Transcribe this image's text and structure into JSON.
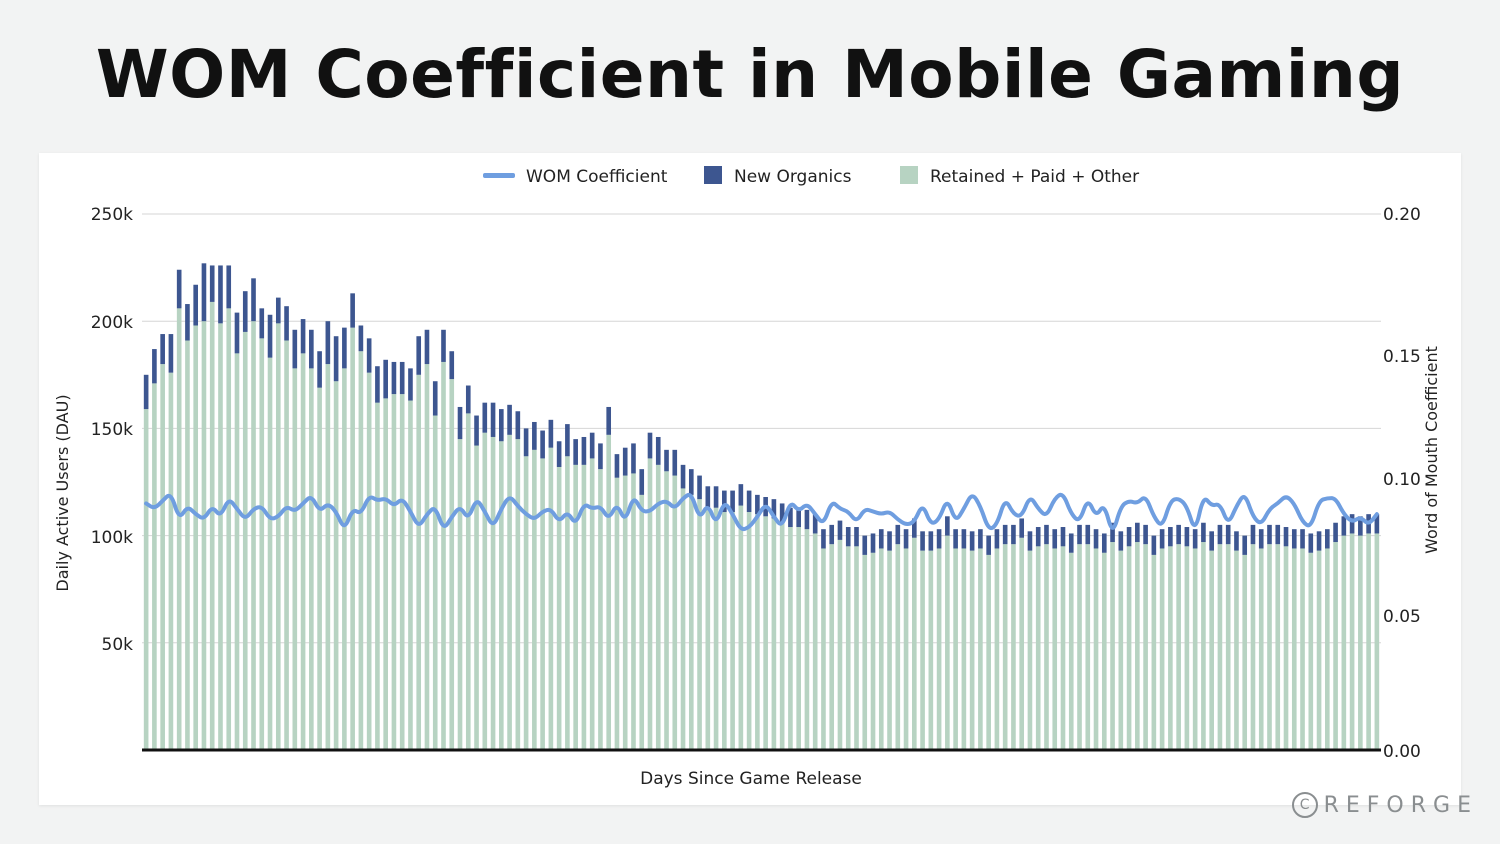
{
  "title": "WOM Coefficient in Mobile Gaming",
  "brand": {
    "mark": "C",
    "name": "REFORGE"
  },
  "colors": {
    "wom_line": "#6f9ee0",
    "new_organics": "#3d5690",
    "retained": "#b7d3c2",
    "grid": "#d6d6d6",
    "axis": "#111111"
  },
  "chart_data": {
    "type": "bar+line",
    "title": "WOM Coefficient in Mobile Gaming",
    "xlabel": "Days Since Game Release",
    "ylabel_left": "Daily Active Users (DAU)",
    "ylabel_right": "Word of Mouth Coefficient",
    "ylim_left": [
      0,
      250000
    ],
    "ylim_right": [
      0,
      0.2
    ],
    "yticks_left": [
      "50k",
      "100k",
      "150k",
      "200k",
      "250k"
    ],
    "yticks_right": [
      "0.00",
      "0.05",
      "0.10",
      "0.15",
      "0.20"
    ],
    "legend": [
      "WOM Coefficient",
      "New Organics",
      "Retained + Paid + Other"
    ],
    "days": 150,
    "series": [
      {
        "name": "Retained + Paid + Other",
        "type": "bar",
        "values": [
          159000,
          171000,
          180000,
          176000,
          206000,
          191000,
          198000,
          200000,
          209000,
          199000,
          206000,
          185000,
          195000,
          200000,
          192000,
          183000,
          199000,
          191000,
          178000,
          185000,
          178000,
          169000,
          180000,
          172000,
          178000,
          197000,
          186000,
          176000,
          162000,
          164000,
          166000,
          166000,
          163000,
          175000,
          180000,
          156000,
          181000,
          173000,
          145000,
          157000,
          142000,
          148000,
          146000,
          144000,
          147000,
          145000,
          137000,
          140000,
          136000,
          141000,
          132000,
          137000,
          133000,
          133000,
          136000,
          131000,
          147000,
          127000,
          128000,
          129000,
          119000,
          136000,
          133000,
          130000,
          128000,
          122000,
          119000,
          117000,
          113000,
          113000,
          111000,
          111000,
          114000,
          111000,
          110000,
          109000,
          108000,
          106000,
          104000,
          104000,
          103000,
          101000,
          94000,
          96000,
          98000,
          95000,
          95000,
          91000,
          92000,
          94000,
          93000,
          96000,
          94000,
          99000,
          93000,
          93000,
          94000,
          100000,
          94000,
          94000,
          93000,
          94000,
          91000,
          94000,
          96000,
          96000,
          99000,
          93000,
          95000,
          96000,
          94000,
          95000,
          92000,
          96000,
          96000,
          94000,
          92000,
          97000,
          93000,
          95000,
          97000,
          96000,
          91000,
          94000,
          95000,
          96000,
          95000,
          94000,
          97000,
          93000,
          96000,
          96000,
          93000,
          91000,
          96000,
          94000,
          96000,
          96000,
          95000,
          94000,
          94000,
          92000,
          93000,
          94000,
          97000,
          100000,
          101000,
          100000,
          101000,
          101000
        ],
        "new_organics_values": [
          16000,
          16000,
          14000,
          18000,
          18000,
          17000,
          19000,
          27000,
          17000,
          27000,
          20000,
          19000,
          19000,
          20000,
          14000,
          20000,
          12000,
          16000,
          18000,
          16000,
          18000,
          17000,
          20000,
          21000,
          19000,
          16000,
          12000,
          16000,
          17000,
          18000,
          15000,
          15000,
          15000,
          18000,
          16000,
          16000,
          15000,
          13000,
          15000,
          13000,
          14000,
          14000,
          16000,
          15000,
          14000,
          13000,
          13000,
          13000,
          13000,
          13000,
          12000,
          15000,
          12000,
          13000,
          12000,
          12000,
          13000,
          11000,
          13000,
          14000,
          12000,
          12000,
          13000,
          10000,
          12000,
          11000,
          12000,
          11000,
          10000,
          10000,
          10000,
          10000,
          10000,
          10000,
          9000,
          9000,
          9000,
          9000,
          9000,
          9000,
          9000,
          9000,
          9000,
          9000,
          9000,
          9000,
          9000,
          9000,
          9000,
          9000,
          9000,
          9000,
          9000,
          9000,
          9000,
          9000,
          9000,
          9000,
          9000,
          9000,
          9000,
          9000,
          9000,
          9000,
          9000,
          9000,
          9000,
          9000,
          9000,
          9000,
          9000,
          9000,
          9000,
          9000,
          9000,
          9000,
          9000,
          9000,
          9000,
          9000,
          9000,
          9000,
          9000,
          9000,
          9000,
          9000,
          9000,
          9000,
          9000,
          9000,
          9000,
          9000,
          9000,
          9000,
          9000,
          9000,
          9000,
          9000,
          9000,
          9000,
          9000,
          9000,
          9000,
          9000,
          9000,
          9000,
          9000,
          9000,
          9000,
          9000
        ]
      },
      {
        "name": "WOM Coefficient",
        "type": "line",
        "values": [
          0.092,
          0.09,
          0.093,
          0.096,
          0.086,
          0.091,
          0.088,
          0.086,
          0.091,
          0.087,
          0.094,
          0.09,
          0.086,
          0.09,
          0.091,
          0.086,
          0.087,
          0.091,
          0.089,
          0.092,
          0.095,
          0.089,
          0.092,
          0.089,
          0.082,
          0.09,
          0.088,
          0.095,
          0.093,
          0.094,
          0.091,
          0.094,
          0.089,
          0.083,
          0.088,
          0.091,
          0.082,
          0.087,
          0.091,
          0.086,
          0.094,
          0.089,
          0.083,
          0.09,
          0.095,
          0.091,
          0.088,
          0.086,
          0.089,
          0.09,
          0.085,
          0.089,
          0.084,
          0.092,
          0.09,
          0.091,
          0.086,
          0.092,
          0.085,
          0.095,
          0.089,
          0.089,
          0.092,
          0.093,
          0.09,
          0.094,
          0.096,
          0.086,
          0.092,
          0.084,
          0.093,
          0.088,
          0.082,
          0.083,
          0.087,
          0.092,
          0.087,
          0.083,
          0.093,
          0.089,
          0.092,
          0.088,
          0.084,
          0.093,
          0.09,
          0.089,
          0.085,
          0.09,
          0.089,
          0.088,
          0.089,
          0.086,
          0.084,
          0.085,
          0.092,
          0.084,
          0.086,
          0.094,
          0.085,
          0.09,
          0.096,
          0.091,
          0.082,
          0.084,
          0.094,
          0.088,
          0.087,
          0.095,
          0.09,
          0.087,
          0.094,
          0.096,
          0.088,
          0.085,
          0.094,
          0.087,
          0.092,
          0.08,
          0.091,
          0.093,
          0.092,
          0.095,
          0.087,
          0.083,
          0.093,
          0.094,
          0.091,
          0.081,
          0.095,
          0.091,
          0.092,
          0.084,
          0.091,
          0.096,
          0.087,
          0.084,
          0.09,
          0.092,
          0.095,
          0.092,
          0.085,
          0.083,
          0.093,
          0.094,
          0.094,
          0.088,
          0.085,
          0.087,
          0.084,
          0.088
        ]
      }
    ]
  }
}
